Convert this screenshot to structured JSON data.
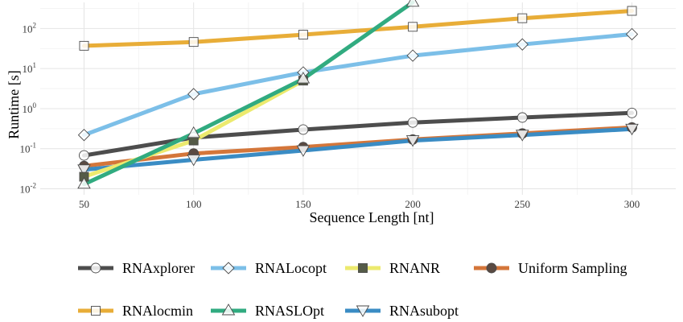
{
  "chart_data": {
    "type": "line",
    "xlabel": "Sequence Length [nt]",
    "ylabel": "Runtime [s]",
    "y_scale": "log",
    "xlim": [
      30,
      320
    ],
    "ylim_exp": [
      -2.15,
      2.65
    ],
    "x_ticks": [
      "50",
      "100",
      "150",
      "200",
      "250",
      "300"
    ],
    "y_ticks": [
      {
        "base": "10",
        "exp": "-2"
      },
      {
        "base": "10",
        "exp": "-1"
      },
      {
        "base": "10",
        "exp": "0"
      },
      {
        "base": "10",
        "exp": "1"
      },
      {
        "base": "10",
        "exp": "2"
      }
    ],
    "grid": true,
    "legend_position": "bottom",
    "series": [
      {
        "name": "RNAlocmin",
        "color": "#e8ad38",
        "marker": "square",
        "points": [
          [
            50,
            37
          ],
          [
            100,
            46
          ],
          [
            150,
            70
          ],
          [
            200,
            110
          ],
          [
            250,
            180
          ],
          [
            300,
            275
          ]
        ]
      },
      {
        "name": "RNALocopt",
        "color": "#7cbfe8",
        "marker": "diamond",
        "points": [
          [
            50,
            0.22
          ],
          [
            100,
            2.3
          ],
          [
            150,
            8.0
          ],
          [
            200,
            21
          ],
          [
            250,
            40
          ],
          [
            300,
            72
          ]
        ]
      },
      {
        "name": "RNAxplorer",
        "color": "#4d4d4d",
        "marker": "circle",
        "points": [
          [
            50,
            0.068
          ],
          [
            100,
            0.19
          ],
          [
            150,
            0.3
          ],
          [
            200,
            0.45
          ],
          [
            250,
            0.6
          ],
          [
            300,
            0.78
          ]
        ]
      },
      {
        "name": "Uniform Sampling",
        "color": "#d4763a",
        "marker": "circle-dark",
        "points": [
          [
            50,
            0.037
          ],
          [
            100,
            0.076
          ],
          [
            150,
            0.11
          ],
          [
            200,
            0.17
          ],
          [
            250,
            0.24
          ],
          [
            300,
            0.34
          ]
        ]
      },
      {
        "name": "RNAsubopt",
        "color": "#3a8cc4",
        "marker": "triangle-down",
        "points": [
          [
            50,
            0.03
          ],
          [
            100,
            0.053
          ],
          [
            150,
            0.09
          ],
          [
            200,
            0.16
          ],
          [
            250,
            0.22
          ],
          [
            300,
            0.31
          ]
        ]
      },
      {
        "name": "RNANR",
        "color": "#ecea6e",
        "marker": "square-dark",
        "points": [
          [
            50,
            0.02
          ],
          [
            100,
            0.16
          ],
          [
            150,
            5.0
          ]
        ]
      },
      {
        "name": "RNASLOpt",
        "color": "#31ab80",
        "marker": "triangle-up",
        "points": [
          [
            50,
            0.013
          ],
          [
            100,
            0.24
          ],
          [
            150,
            5.5
          ],
          [
            200,
            450
          ]
        ]
      }
    ],
    "legend_rows": [
      [
        "RNAxplorer",
        "RNALocopt",
        "RNANR",
        "Uniform Sampling"
      ],
      [
        "RNAlocmin",
        "RNASLOpt",
        "RNAsubopt"
      ]
    ]
  }
}
